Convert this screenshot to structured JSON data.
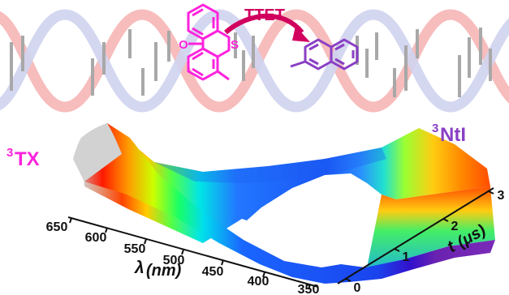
{
  "figure": {
    "process_label": "TTET",
    "donor_label": {
      "sup": "3",
      "main": "TX"
    },
    "acceptor_label": {
      "sup": "3",
      "main": "NtI"
    },
    "donor_atoms": {
      "oxygen": "O",
      "sulfur": "S"
    },
    "colors": {
      "dna_red": "#f7bcbc",
      "dna_blue": "#cfd3ee",
      "base_pairs": "#a8a8a8",
      "donor_magenta": "#ff22dd",
      "acceptor_purple": "#8a3fc4",
      "arrow": "#d1005f",
      "text": "#111111"
    },
    "surface_axes": {
      "wavelength": {
        "label_symbol": "λ",
        "label_unit": "(nm)",
        "ticks": [
          "650",
          "600",
          "550",
          "500",
          "450",
          "400",
          "350"
        ]
      },
      "time": {
        "label_symbol": "t",
        "label_unit": "(μs)",
        "ticks": [
          "0",
          "1",
          "2",
          "3"
        ]
      }
    }
  }
}
